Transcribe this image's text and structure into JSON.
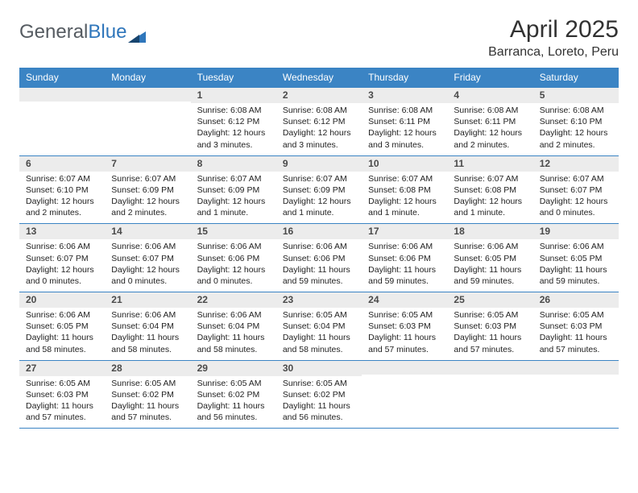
{
  "logo": {
    "text1": "General",
    "text2": "Blue"
  },
  "title": "April 2025",
  "location": "Barranca, Loreto, Peru",
  "colors": {
    "header_bg": "#3b84c4",
    "header_text": "#ffffff",
    "daynum_bg": "#ececec",
    "row_divider": "#3b84c4",
    "logo_gray": "#555b61",
    "logo_blue": "#2f76bb"
  },
  "weekdays": [
    "Sunday",
    "Monday",
    "Tuesday",
    "Wednesday",
    "Thursday",
    "Friday",
    "Saturday"
  ],
  "weeks": [
    [
      null,
      null,
      {
        "n": "1",
        "sr": "6:08 AM",
        "ss": "6:12 PM",
        "dl": "12 hours and 3 minutes."
      },
      {
        "n": "2",
        "sr": "6:08 AM",
        "ss": "6:12 PM",
        "dl": "12 hours and 3 minutes."
      },
      {
        "n": "3",
        "sr": "6:08 AM",
        "ss": "6:11 PM",
        "dl": "12 hours and 3 minutes."
      },
      {
        "n": "4",
        "sr": "6:08 AM",
        "ss": "6:11 PM",
        "dl": "12 hours and 2 minutes."
      },
      {
        "n": "5",
        "sr": "6:08 AM",
        "ss": "6:10 PM",
        "dl": "12 hours and 2 minutes."
      }
    ],
    [
      {
        "n": "6",
        "sr": "6:07 AM",
        "ss": "6:10 PM",
        "dl": "12 hours and 2 minutes."
      },
      {
        "n": "7",
        "sr": "6:07 AM",
        "ss": "6:09 PM",
        "dl": "12 hours and 2 minutes."
      },
      {
        "n": "8",
        "sr": "6:07 AM",
        "ss": "6:09 PM",
        "dl": "12 hours and 1 minute."
      },
      {
        "n": "9",
        "sr": "6:07 AM",
        "ss": "6:09 PM",
        "dl": "12 hours and 1 minute."
      },
      {
        "n": "10",
        "sr": "6:07 AM",
        "ss": "6:08 PM",
        "dl": "12 hours and 1 minute."
      },
      {
        "n": "11",
        "sr": "6:07 AM",
        "ss": "6:08 PM",
        "dl": "12 hours and 1 minute."
      },
      {
        "n": "12",
        "sr": "6:07 AM",
        "ss": "6:07 PM",
        "dl": "12 hours and 0 minutes."
      }
    ],
    [
      {
        "n": "13",
        "sr": "6:06 AM",
        "ss": "6:07 PM",
        "dl": "12 hours and 0 minutes."
      },
      {
        "n": "14",
        "sr": "6:06 AM",
        "ss": "6:07 PM",
        "dl": "12 hours and 0 minutes."
      },
      {
        "n": "15",
        "sr": "6:06 AM",
        "ss": "6:06 PM",
        "dl": "12 hours and 0 minutes."
      },
      {
        "n": "16",
        "sr": "6:06 AM",
        "ss": "6:06 PM",
        "dl": "11 hours and 59 minutes."
      },
      {
        "n": "17",
        "sr": "6:06 AM",
        "ss": "6:06 PM",
        "dl": "11 hours and 59 minutes."
      },
      {
        "n": "18",
        "sr": "6:06 AM",
        "ss": "6:05 PM",
        "dl": "11 hours and 59 minutes."
      },
      {
        "n": "19",
        "sr": "6:06 AM",
        "ss": "6:05 PM",
        "dl": "11 hours and 59 minutes."
      }
    ],
    [
      {
        "n": "20",
        "sr": "6:06 AM",
        "ss": "6:05 PM",
        "dl": "11 hours and 58 minutes."
      },
      {
        "n": "21",
        "sr": "6:06 AM",
        "ss": "6:04 PM",
        "dl": "11 hours and 58 minutes."
      },
      {
        "n": "22",
        "sr": "6:06 AM",
        "ss": "6:04 PM",
        "dl": "11 hours and 58 minutes."
      },
      {
        "n": "23",
        "sr": "6:05 AM",
        "ss": "6:04 PM",
        "dl": "11 hours and 58 minutes."
      },
      {
        "n": "24",
        "sr": "6:05 AM",
        "ss": "6:03 PM",
        "dl": "11 hours and 57 minutes."
      },
      {
        "n": "25",
        "sr": "6:05 AM",
        "ss": "6:03 PM",
        "dl": "11 hours and 57 minutes."
      },
      {
        "n": "26",
        "sr": "6:05 AM",
        "ss": "6:03 PM",
        "dl": "11 hours and 57 minutes."
      }
    ],
    [
      {
        "n": "27",
        "sr": "6:05 AM",
        "ss": "6:03 PM",
        "dl": "11 hours and 57 minutes."
      },
      {
        "n": "28",
        "sr": "6:05 AM",
        "ss": "6:02 PM",
        "dl": "11 hours and 57 minutes."
      },
      {
        "n": "29",
        "sr": "6:05 AM",
        "ss": "6:02 PM",
        "dl": "11 hours and 56 minutes."
      },
      {
        "n": "30",
        "sr": "6:05 AM",
        "ss": "6:02 PM",
        "dl": "11 hours and 56 minutes."
      },
      null,
      null,
      null
    ]
  ],
  "labels": {
    "sunrise": "Sunrise:",
    "sunset": "Sunset:",
    "daylight": "Daylight:"
  }
}
